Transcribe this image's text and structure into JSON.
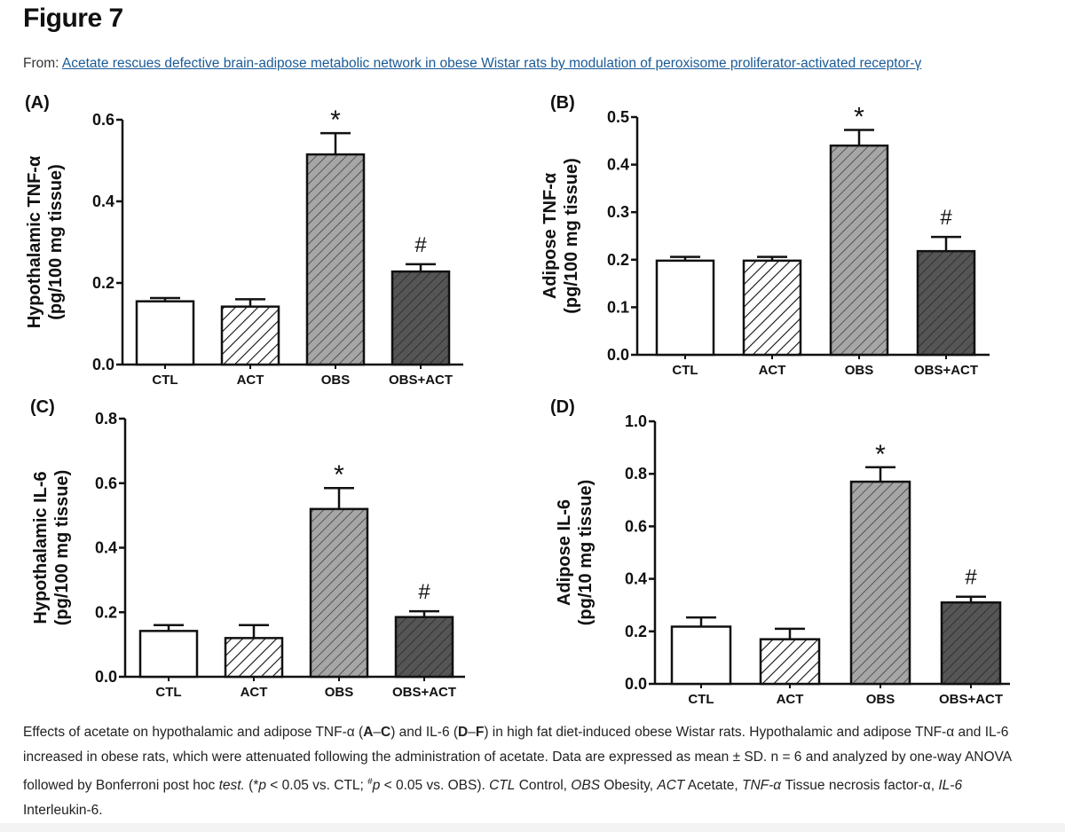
{
  "figure_title": "Figure 7",
  "from_label": "From:",
  "article_link": "Acetate rescues defective brain-adipose metabolic network in obese Wistar rats by modulation of peroxisome proliferator-activated receptor-γ",
  "colors": {
    "link": "#1a5a96",
    "bar_ctl": "#ffffff",
    "bar_act": "#ffffff",
    "bar_obs": "#a6a6a6",
    "bar_obs_act": "#555555",
    "bar_outline": "#111111"
  },
  "chart_data": [
    {
      "type": "bar",
      "panel_label": "(A)",
      "ylabel_line1": "Hypothalamic TNF-α",
      "ylabel_line2": "(pg/100 mg tissue)",
      "categories": [
        "CTL",
        "ACT",
        "OBS",
        "OBS+ACT"
      ],
      "values": [
        0.155,
        0.142,
        0.515,
        0.228
      ],
      "errors": [
        0.008,
        0.018,
        0.052,
        0.018
      ],
      "significance": [
        "",
        "",
        "*",
        "#"
      ],
      "ylim": [
        0,
        0.6
      ],
      "yticks": [
        0.0,
        0.2,
        0.4,
        0.6
      ],
      "ytick_labels": [
        "0.0",
        "0.2",
        "0.4",
        "0.6"
      ],
      "grid": false
    },
    {
      "type": "bar",
      "panel_label": "(B)",
      "ylabel_line1": "Adipose TNF-α",
      "ylabel_line2": "(pg/100 mg tissue)",
      "categories": [
        "CTL",
        "ACT",
        "OBS",
        "OBS+ACT"
      ],
      "values": [
        0.198,
        0.198,
        0.44,
        0.218
      ],
      "errors": [
        0.008,
        0.008,
        0.033,
        0.03
      ],
      "significance": [
        "",
        "",
        "*",
        "#"
      ],
      "ylim": [
        0,
        0.5
      ],
      "yticks": [
        0.0,
        0.1,
        0.2,
        0.3,
        0.4,
        0.5
      ],
      "ytick_labels": [
        "0.0",
        "0.1",
        "0.2",
        "0.3",
        "0.4",
        "0.5"
      ],
      "grid": false
    },
    {
      "type": "bar",
      "panel_label": "(C)",
      "ylabel_line1": "Hypothalamic IL-6",
      "ylabel_line2": "(pg/100 mg tissue)",
      "categories": [
        "CTL",
        "ACT",
        "OBS",
        "OBS+ACT"
      ],
      "values": [
        0.142,
        0.12,
        0.52,
        0.185
      ],
      "errors": [
        0.018,
        0.04,
        0.065,
        0.018
      ],
      "significance": [
        "",
        "",
        "*",
        "#"
      ],
      "ylim": [
        0,
        0.8
      ],
      "yticks": [
        0.0,
        0.2,
        0.4,
        0.6,
        0.8
      ],
      "ytick_labels": [
        "0.0",
        "0.2",
        "0.4",
        "0.6",
        "0.8"
      ],
      "grid": false
    },
    {
      "type": "bar",
      "panel_label": "(D)",
      "ylabel_line1": "Adipose IL-6",
      "ylabel_line2": "(pg/10 mg tissue)",
      "categories": [
        "CTL",
        "ACT",
        "OBS",
        "OBS+ACT"
      ],
      "values": [
        0.218,
        0.17,
        0.77,
        0.31
      ],
      "errors": [
        0.035,
        0.04,
        0.055,
        0.022
      ],
      "significance": [
        "",
        "",
        "*",
        "#"
      ],
      "ylim": [
        0,
        1.0
      ],
      "yticks": [
        0.0,
        0.2,
        0.4,
        0.6,
        0.8,
        1.0
      ],
      "ytick_labels": [
        "0.0",
        "0.2",
        "0.4",
        "0.6",
        "0.8",
        "1.0"
      ],
      "grid": false
    }
  ],
  "caption": {
    "p1": "Effects of acetate on hypothalamic and adipose TNF-α (",
    "p2": "A",
    "p3": "–",
    "p4": "C",
    "p5": ") and IL-6 (",
    "p6": "D",
    "p7": "–",
    "p8": "F",
    "p9": ") in high fat diet-induced obese Wistar rats. Hypothalamic and adipose TNF-α and IL-6 increased in obese rats, which were attenuated following the administration of acetate. Data are expressed as mean ± SD. n = 6 and analyzed by one-way ANOVA followed by Bonferroni post hoc ",
    "p10": "test.",
    "p11": " (*",
    "p12": "p",
    "p13": " < 0.05 vs. CTL; ",
    "p14": "#",
    "p15": "p",
    "p16": " < 0.05 vs. OBS). ",
    "p17": "CTL",
    "p18": " Control, ",
    "p19": "OBS",
    "p20": " Obesity, ",
    "p21": "ACT",
    "p22": " Acetate, ",
    "p23": "TNF-α",
    "p24": " Tissue necrosis factor-α, ",
    "p25": "IL-6",
    "p26": " Interleukin-6."
  }
}
